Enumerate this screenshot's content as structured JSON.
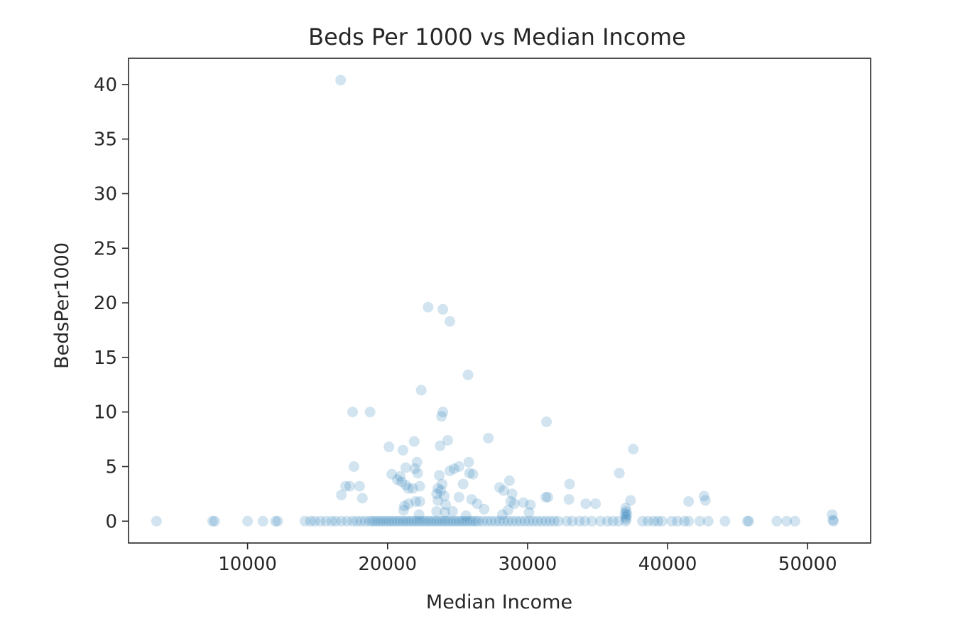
{
  "chart_data": {
    "type": "scatter",
    "title": "Beds Per 1000 vs Median Income",
    "xlabel": "Median Income",
    "ylabel": "BedsPer1000",
    "xlim": [
      1500,
      54500
    ],
    "ylim": [
      -2,
      42.4
    ],
    "xticks": [
      10000,
      20000,
      30000,
      40000,
      50000
    ],
    "yticks": [
      0,
      5,
      10,
      15,
      20,
      25,
      30,
      35,
      40
    ],
    "grid": false,
    "legend": "none",
    "marker_color": "#1f77b4",
    "marker_alpha": 0.2,
    "points": [
      [
        16650,
        40.4
      ],
      [
        22900,
        19.6
      ],
      [
        23950,
        19.4
      ],
      [
        24450,
        18.3
      ],
      [
        25750,
        13.4
      ],
      [
        22400,
        12.0
      ],
      [
        17500,
        10.0
      ],
      [
        18750,
        10.0
      ],
      [
        23950,
        10.0
      ],
      [
        23850,
        9.6
      ],
      [
        31350,
        9.1
      ],
      [
        27200,
        7.6
      ],
      [
        24300,
        7.4
      ],
      [
        21900,
        7.3
      ],
      [
        23750,
        6.9
      ],
      [
        20100,
        6.8
      ],
      [
        21100,
        6.5
      ],
      [
        37550,
        6.6
      ],
      [
        25800,
        5.4
      ],
      [
        22100,
        5.4
      ],
      [
        17600,
        5.0
      ],
      [
        25100,
        5.0
      ],
      [
        21300,
        4.9
      ],
      [
        21950,
        4.8
      ],
      [
        24450,
        4.6
      ],
      [
        24750,
        4.8
      ],
      [
        25850,
        4.4
      ],
      [
        26100,
        4.3
      ],
      [
        20300,
        4.3
      ],
      [
        20900,
        4.1
      ],
      [
        22150,
        4.4
      ],
      [
        23700,
        4.2
      ],
      [
        36550,
        4.4
      ],
      [
        20700,
        3.8
      ],
      [
        21000,
        3.6
      ],
      [
        21300,
        3.3
      ],
      [
        21500,
        3.0
      ],
      [
        21800,
        3.0
      ],
      [
        22300,
        3.2
      ],
      [
        23600,
        3.0
      ],
      [
        23900,
        3.4
      ],
      [
        25400,
        3.4
      ],
      [
        28000,
        3.1
      ],
      [
        28700,
        3.7
      ],
      [
        33000,
        3.4
      ],
      [
        17000,
        3.2
      ],
      [
        17300,
        3.2
      ],
      [
        18000,
        3.2
      ],
      [
        16700,
        2.4
      ],
      [
        18200,
        2.1
      ],
      [
        23500,
        2.5
      ],
      [
        23800,
        2.8
      ],
      [
        24050,
        2.3
      ],
      [
        25100,
        2.2
      ],
      [
        26000,
        2.0
      ],
      [
        28300,
        2.8
      ],
      [
        28900,
        2.5
      ],
      [
        31300,
        2.2
      ],
      [
        31450,
        2.2
      ],
      [
        32950,
        2.0
      ],
      [
        42600,
        2.3
      ],
      [
        42700,
        1.9
      ],
      [
        37350,
        1.9
      ],
      [
        21200,
        1.4
      ],
      [
        21500,
        1.6
      ],
      [
        22000,
        1.8
      ],
      [
        22300,
        1.8
      ],
      [
        23600,
        1.9
      ],
      [
        24150,
        1.5
      ],
      [
        26400,
        1.6
      ],
      [
        28800,
        1.8
      ],
      [
        29050,
        1.6
      ],
      [
        29700,
        1.7
      ],
      [
        30200,
        1.5
      ],
      [
        34150,
        1.6
      ],
      [
        34850,
        1.6
      ],
      [
        41500,
        1.8
      ],
      [
        21150,
        1.0
      ],
      [
        23500,
        0.9
      ],
      [
        24100,
        0.8
      ],
      [
        24650,
        0.9
      ],
      [
        26900,
        1.1
      ],
      [
        28200,
        0.6
      ],
      [
        28600,
        1.0
      ],
      [
        30100,
        0.8
      ],
      [
        22250,
        0.6
      ],
      [
        25600,
        0.5
      ],
      [
        37000,
        1.2
      ],
      [
        37050,
        0.9
      ],
      [
        36950,
        0.7
      ],
      [
        37100,
        0.6
      ],
      [
        37000,
        0.4
      ],
      [
        37050,
        0.2
      ],
      [
        51750,
        0.6
      ],
      [
        51800,
        0.1
      ],
      [
        3500,
        0
      ],
      [
        7500,
        0
      ],
      [
        7650,
        0
      ],
      [
        10000,
        0
      ],
      [
        11100,
        0
      ],
      [
        12000,
        0
      ],
      [
        12150,
        0
      ],
      [
        14100,
        0
      ],
      [
        14500,
        0
      ],
      [
        14800,
        0
      ],
      [
        15200,
        0
      ],
      [
        15600,
        0
      ],
      [
        16000,
        0
      ],
      [
        16300,
        0
      ],
      [
        16700,
        0
      ],
      [
        17100,
        0
      ],
      [
        17500,
        0
      ],
      [
        17800,
        0
      ],
      [
        18100,
        0
      ],
      [
        18400,
        0
      ],
      [
        18700,
        0
      ],
      [
        18900,
        0
      ],
      [
        19100,
        0
      ],
      [
        19300,
        0
      ],
      [
        19500,
        0
      ],
      [
        19700,
        0
      ],
      [
        19900,
        0
      ],
      [
        20100,
        0
      ],
      [
        20300,
        0
      ],
      [
        20500,
        0
      ],
      [
        20700,
        0
      ],
      [
        20900,
        0
      ],
      [
        21100,
        0
      ],
      [
        21300,
        0
      ],
      [
        21500,
        0
      ],
      [
        21700,
        0
      ],
      [
        21900,
        0
      ],
      [
        22100,
        0
      ],
      [
        22300,
        0
      ],
      [
        22500,
        0
      ],
      [
        22700,
        0
      ],
      [
        22900,
        0
      ],
      [
        23100,
        0
      ],
      [
        23300,
        0
      ],
      [
        23500,
        0
      ],
      [
        23700,
        0
      ],
      [
        23900,
        0
      ],
      [
        24100,
        0
      ],
      [
        24300,
        0
      ],
      [
        24500,
        0
      ],
      [
        24700,
        0
      ],
      [
        24900,
        0
      ],
      [
        25100,
        0
      ],
      [
        25300,
        0
      ],
      [
        25500,
        0
      ],
      [
        25700,
        0
      ],
      [
        25900,
        0
      ],
      [
        26100,
        0
      ],
      [
        26300,
        0
      ],
      [
        26500,
        0
      ],
      [
        26800,
        0
      ],
      [
        27100,
        0
      ],
      [
        27400,
        0
      ],
      [
        27700,
        0
      ],
      [
        28000,
        0
      ],
      [
        28300,
        0
      ],
      [
        28600,
        0
      ],
      [
        28900,
        0
      ],
      [
        29200,
        0
      ],
      [
        29500,
        0
      ],
      [
        29800,
        0
      ],
      [
        30100,
        0
      ],
      [
        30400,
        0
      ],
      [
        30700,
        0
      ],
      [
        31000,
        0
      ],
      [
        31300,
        0
      ],
      [
        31600,
        0
      ],
      [
        31900,
        0
      ],
      [
        32200,
        0
      ],
      [
        32800,
        0
      ],
      [
        33200,
        0
      ],
      [
        33700,
        0
      ],
      [
        34100,
        0
      ],
      [
        34600,
        0
      ],
      [
        35200,
        0
      ],
      [
        35700,
        0
      ],
      [
        36100,
        0
      ],
      [
        36500,
        0
      ],
      [
        37000,
        0
      ],
      [
        38200,
        0
      ],
      [
        38600,
        0
      ],
      [
        39000,
        0
      ],
      [
        39300,
        0
      ],
      [
        39600,
        0
      ],
      [
        40300,
        0
      ],
      [
        40700,
        0
      ],
      [
        41200,
        0
      ],
      [
        41500,
        0
      ],
      [
        42300,
        0
      ],
      [
        42900,
        0
      ],
      [
        44100,
        0
      ],
      [
        45700,
        0
      ],
      [
        45800,
        0
      ],
      [
        47800,
        0
      ],
      [
        48500,
        0
      ],
      [
        49100,
        0
      ],
      [
        51850,
        0
      ]
    ]
  }
}
